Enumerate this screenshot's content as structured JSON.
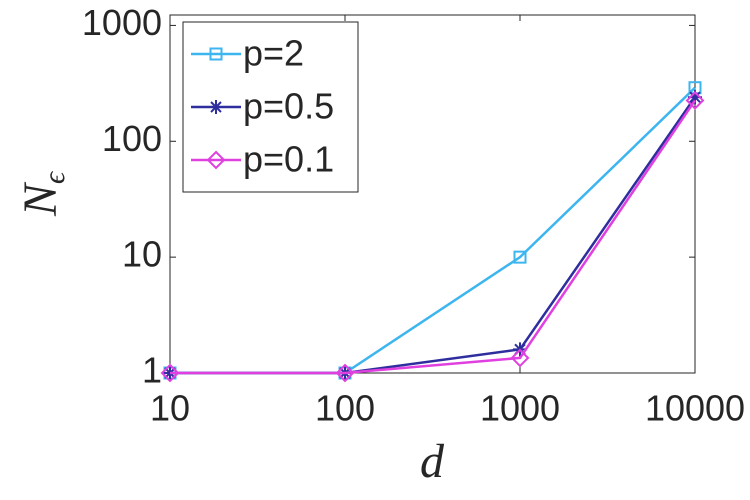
{
  "chart_data": {
    "type": "line",
    "x_label": "d",
    "y_label": {
      "text": "N",
      "subscript": "ϵ"
    },
    "x": [
      10,
      100,
      1000,
      10000
    ],
    "series": [
      {
        "name": "p=2",
        "color": "#3db5ef",
        "marker": "square",
        "values": [
          1,
          1,
          10,
          290
        ]
      },
      {
        "name": "p=0.5",
        "color": "#2e2e9e",
        "marker": "asterisk",
        "values": [
          1,
          1,
          1.6,
          240
        ]
      },
      {
        "name": "p=0.1",
        "color": "#e040e0",
        "marker": "diamond",
        "values": [
          1,
          1,
          1.35,
          225
        ]
      }
    ],
    "xlim": [
      10,
      10000
    ],
    "ylim": [
      1,
      1230
    ],
    "xticks": [
      10,
      100,
      1000,
      10000
    ],
    "yticks": [
      1,
      10,
      100,
      1000
    ],
    "xscale": "log",
    "yscale": "log",
    "grid": false,
    "legend": "upper-left"
  }
}
